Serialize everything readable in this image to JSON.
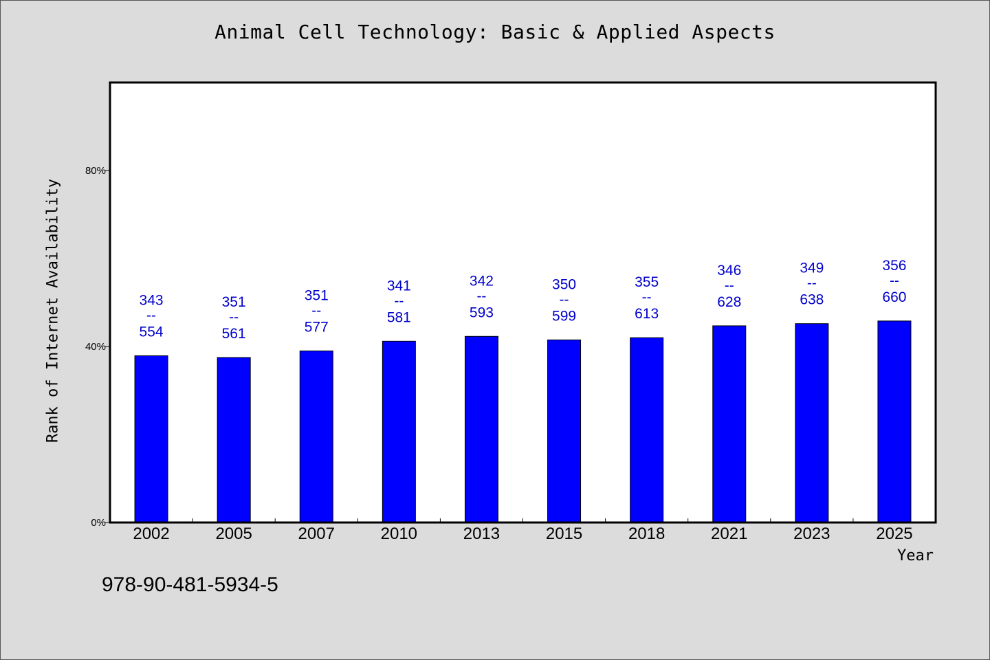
{
  "chart_data": {
    "type": "bar",
    "title": "Animal Cell Technology: Basic & Applied Aspects",
    "xlabel": "Year",
    "ylabel": "Rank of Internet Availability",
    "categories": [
      "2002",
      "2005",
      "2007",
      "2010",
      "2013",
      "2015",
      "2018",
      "2021",
      "2023",
      "2025"
    ],
    "values": [
      0.379,
      0.375,
      0.39,
      0.412,
      0.423,
      0.415,
      0.42,
      0.447,
      0.452,
      0.458
    ],
    "bar_labels": [
      {
        "top": "343",
        "sep": "--",
        "bottom": "554"
      },
      {
        "top": "351",
        "sep": "--",
        "bottom": "561"
      },
      {
        "top": "351",
        "sep": "--",
        "bottom": "577"
      },
      {
        "top": "341",
        "sep": "--",
        "bottom": "581"
      },
      {
        "top": "342",
        "sep": "--",
        "bottom": "593"
      },
      {
        "top": "350",
        "sep": "--",
        "bottom": "599"
      },
      {
        "top": "355",
        "sep": "--",
        "bottom": "613"
      },
      {
        "top": "346",
        "sep": "--",
        "bottom": "628"
      },
      {
        "top": "349",
        "sep": "--",
        "bottom": "638"
      },
      {
        "top": "356",
        "sep": "--",
        "bottom": "660"
      }
    ],
    "ylim": [
      0,
      1
    ],
    "y_ticks": [
      {
        "value": 0,
        "label": "0%"
      },
      {
        "value": 0.4,
        "label": "40%"
      },
      {
        "value": 0.8,
        "label": "80%"
      }
    ],
    "grid": false,
    "bar_color": "#0000ff",
    "label_color": "#0000cc",
    "plot_background": "#ffffff",
    "page_background": "#dcdcdc"
  },
  "footer": {
    "isbn": "978-90-481-5934-5"
  }
}
